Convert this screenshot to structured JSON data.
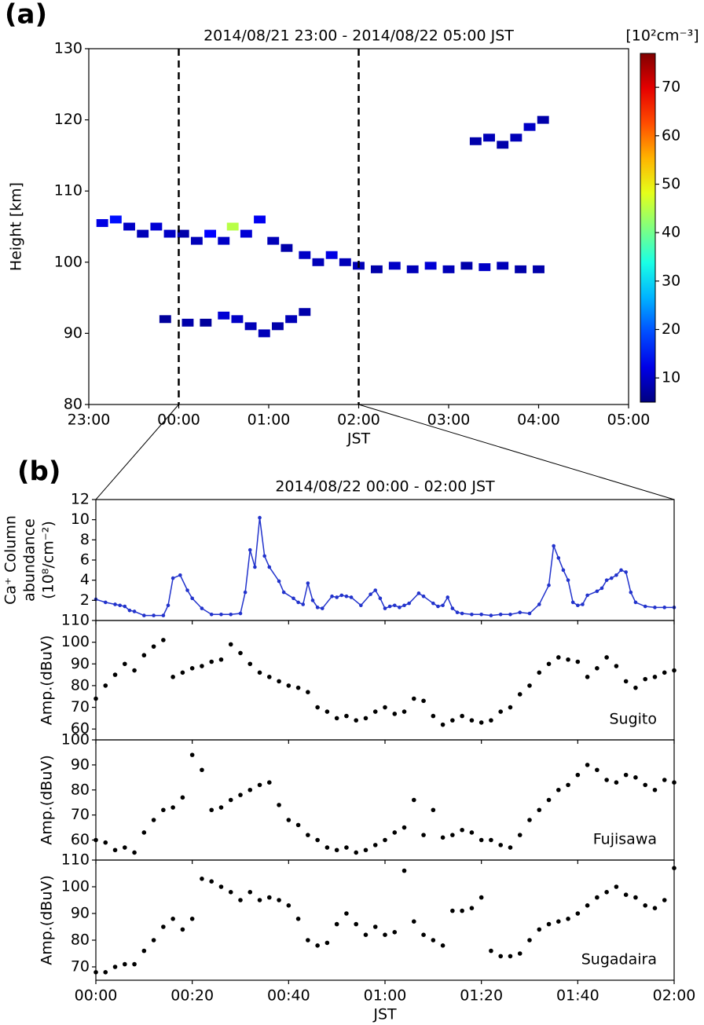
{
  "chart_data": [
    {
      "type": "heatmap",
      "panel_label": "(a)",
      "title": "2014/08/21 23:00 - 2014/08/22 05:00 JST",
      "xlabel": "JST",
      "ylabel": "Height [km]",
      "colorbar_label": "[10²cm⁻³]",
      "xlim": [
        0,
        6
      ],
      "xticks": [
        {
          "value": 0,
          "label": "23:00"
        },
        {
          "value": 1,
          "label": "00:00"
        },
        {
          "value": 2,
          "label": "01:00"
        },
        {
          "value": 3,
          "label": "02:00"
        },
        {
          "value": 4,
          "label": "03:00"
        },
        {
          "value": 5,
          "label": "04:00"
        },
        {
          "value": 6,
          "label": "05:00"
        }
      ],
      "ylim": [
        80,
        130
      ],
      "yticks": [
        80,
        90,
        100,
        110,
        120,
        130
      ],
      "clim": [
        5,
        77
      ],
      "cticks": [
        10,
        20,
        30,
        40,
        50,
        60,
        70
      ],
      "colormap": "jet",
      "vlines": [
        1,
        3
      ],
      "x": [
        0.15,
        0.3,
        0.45,
        0.6,
        0.75,
        0.9,
        1.05,
        1.2,
        1.35,
        1.5,
        1.6,
        1.75,
        1.9,
        2.05,
        2.2,
        2.4,
        2.55,
        2.7,
        2.85,
        3.0,
        3.2,
        3.4,
        3.6,
        3.8,
        4.0,
        4.2,
        4.4,
        4.6,
        4.8,
        5.0,
        0.85,
        1.1,
        1.3,
        1.5,
        1.65,
        1.8,
        1.95,
        2.1,
        2.25,
        2.4,
        4.3,
        4.45,
        4.6,
        4.75,
        4.9,
        5.05
      ],
      "y": [
        105.5,
        106,
        105,
        104,
        105,
        104,
        104,
        103,
        104,
        103,
        105,
        104,
        106,
        103,
        102,
        101,
        100,
        101,
        100,
        99.5,
        99,
        99.5,
        99,
        99.5,
        99,
        99.5,
        99.3,
        99.5,
        99,
        99,
        92,
        91.5,
        91.5,
        92.5,
        92,
        91,
        90,
        91,
        92,
        93,
        117,
        117.5,
        116.5,
        117.5,
        119,
        120
      ],
      "values": [
        12,
        15,
        10,
        9,
        11,
        10,
        8,
        9,
        14,
        10,
        45,
        11,
        13,
        9,
        8,
        10,
        9,
        12,
        9,
        9,
        8,
        10,
        9,
        11,
        9,
        8,
        10,
        9,
        8,
        8,
        7,
        8,
        7,
        11,
        10,
        9,
        9,
        8,
        9,
        8,
        8,
        9,
        8,
        9,
        10,
        8
      ]
    },
    {
      "type": "line",
      "panel_label": "(b)",
      "title": "2014/08/22 00:00 - 02:00 JST",
      "ylabel": [
        "Ca⁺ Column",
        "abundance",
        "(10⁸/cm⁻²)"
      ],
      "color": "#2233cc",
      "xlim": [
        0,
        120
      ],
      "ylim": [
        0,
        12
      ],
      "yticks": [
        2,
        4,
        6,
        8,
        10,
        12
      ],
      "x": [
        0,
        2,
        4,
        5,
        6,
        7,
        8,
        10,
        12,
        14,
        15,
        16,
        17.5,
        19,
        20,
        22,
        24,
        26,
        28,
        30,
        31,
        32,
        33,
        34,
        35,
        36,
        38,
        39,
        41,
        42,
        43,
        44,
        45,
        46,
        47,
        49,
        50,
        51,
        52,
        53,
        55,
        57,
        58,
        59,
        60,
        61,
        62,
        63,
        64,
        65,
        67,
        68,
        70,
        71,
        72,
        73,
        74,
        75,
        76,
        78,
        80,
        82,
        84,
        86,
        88,
        90,
        92,
        94,
        95,
        96,
        97,
        98,
        99,
        100,
        101,
        102,
        104,
        105,
        106,
        107,
        108,
        109,
        110,
        111,
        112,
        114,
        116,
        118,
        120
      ],
      "values": [
        2.1,
        1.8,
        1.6,
        1.5,
        1.4,
        1.0,
        0.9,
        0.5,
        0.5,
        0.5,
        1.5,
        4.2,
        4.5,
        3.0,
        2.2,
        1.2,
        0.6,
        0.6,
        0.6,
        0.7,
        2.8,
        7.0,
        5.3,
        10.2,
        6.4,
        5.3,
        3.9,
        2.8,
        2.2,
        1.8,
        1.6,
        3.7,
        2.0,
        1.3,
        1.2,
        2.4,
        2.3,
        2.5,
        2.4,
        2.3,
        1.5,
        2.6,
        3.0,
        2.2,
        1.2,
        1.4,
        1.5,
        1.3,
        1.5,
        1.7,
        2.7,
        2.4,
        1.7,
        1.4,
        1.5,
        2.3,
        1.2,
        0.8,
        0.7,
        0.6,
        0.6,
        0.5,
        0.6,
        0.6,
        0.8,
        0.7,
        1.6,
        3.5,
        7.4,
        6.2,
        5.0,
        4.0,
        1.8,
        1.5,
        1.6,
        2.5,
        2.9,
        3.2,
        4.0,
        4.2,
        4.5,
        5.0,
        4.8,
        2.8,
        1.8,
        1.4,
        1.3,
        1.3,
        1.3
      ]
    },
    {
      "type": "scatter",
      "ylabel": "Amp.(dBuV)",
      "annotation": "Sugito",
      "color": "#000000",
      "xlim": [
        0,
        120
      ],
      "ylim": [
        55,
        110
      ],
      "yticks": [
        60,
        70,
        80,
        90,
        100,
        110
      ],
      "x": [
        0,
        2,
        4,
        6,
        8,
        10,
        12,
        14,
        16,
        18,
        20,
        22,
        24,
        26,
        28,
        30,
        32,
        34,
        36,
        38,
        40,
        42,
        44,
        46,
        48,
        50,
        52,
        54,
        56,
        58,
        60,
        62,
        64,
        66,
        68,
        70,
        72,
        74,
        76,
        78,
        80,
        82,
        84,
        86,
        88,
        90,
        92,
        94,
        96,
        98,
        100,
        102,
        104,
        106,
        108,
        110,
        112,
        114,
        116,
        118,
        120
      ],
      "values": [
        74,
        80,
        85,
        90,
        87,
        94,
        98,
        101,
        84,
        86,
        88,
        89,
        91,
        92,
        99,
        95,
        90,
        86,
        84,
        82,
        80,
        79,
        77,
        70,
        68,
        65,
        66,
        64,
        65,
        68,
        70,
        67,
        68,
        74,
        73,
        66,
        62,
        64,
        66,
        64,
        63,
        64,
        68,
        70,
        76,
        80,
        86,
        90,
        93,
        92,
        91,
        84,
        88,
        93,
        89,
        82,
        79,
        83,
        84,
        86,
        87
      ]
    },
    {
      "type": "scatter",
      "ylabel": "Amp.(dBuV)",
      "annotation": "Fujisawa",
      "color": "#000000",
      "xlim": [
        0,
        120
      ],
      "ylim": [
        52,
        100
      ],
      "yticks": [
        60,
        70,
        80,
        90,
        100
      ],
      "x": [
        0,
        2,
        4,
        6,
        8,
        10,
        12,
        14,
        16,
        18,
        20,
        22,
        24,
        26,
        28,
        30,
        32,
        34,
        36,
        38,
        40,
        42,
        44,
        46,
        48,
        50,
        52,
        54,
        56,
        58,
        60,
        62,
        64,
        66,
        68,
        70,
        72,
        74,
        76,
        78,
        80,
        82,
        84,
        86,
        88,
        90,
        92,
        94,
        96,
        98,
        100,
        102,
        104,
        106,
        108,
        110,
        112,
        114,
        116,
        118,
        120
      ],
      "values": [
        60,
        59,
        56,
        57,
        55,
        63,
        68,
        72,
        73,
        77,
        94,
        88,
        72,
        73,
        76,
        78,
        80,
        82,
        83,
        74,
        68,
        66,
        62,
        60,
        57,
        56,
        57,
        55,
        56,
        58,
        60,
        63,
        65,
        76,
        62,
        72,
        61,
        62,
        64,
        63,
        60,
        60,
        58,
        57,
        62,
        68,
        72,
        76,
        80,
        82,
        86,
        90,
        88,
        84,
        83,
        86,
        85,
        82,
        80,
        84,
        83
      ]
    },
    {
      "type": "scatter",
      "ylabel": "Amp.(dBuV)",
      "annotation": "Sugadaira",
      "xlabel": "JST",
      "color": "#000000",
      "xlim": [
        0,
        120
      ],
      "xticks": [
        {
          "value": 0,
          "label": "00:00"
        },
        {
          "value": 20,
          "label": "00:20"
        },
        {
          "value": 40,
          "label": "00:40"
        },
        {
          "value": 60,
          "label": "01:00"
        },
        {
          "value": 80,
          "label": "01:20"
        },
        {
          "value": 100,
          "label": "01:40"
        },
        {
          "value": 120,
          "label": "02:00"
        }
      ],
      "ylim": [
        65,
        110
      ],
      "yticks": [
        70,
        80,
        90,
        100,
        110
      ],
      "x": [
        0,
        2,
        4,
        6,
        8,
        10,
        12,
        14,
        16,
        18,
        20,
        22,
        24,
        26,
        28,
        30,
        32,
        34,
        36,
        38,
        40,
        42,
        44,
        46,
        48,
        50,
        52,
        54,
        56,
        58,
        60,
        62,
        64,
        66,
        68,
        70,
        72,
        74,
        76,
        78,
        80,
        82,
        84,
        86,
        88,
        90,
        92,
        94,
        96,
        98,
        100,
        102,
        104,
        106,
        108,
        110,
        112,
        114,
        116,
        118,
        120
      ],
      "values": [
        68,
        68,
        70,
        71,
        71,
        76,
        80,
        85,
        88,
        84,
        88,
        103,
        102,
        100,
        98,
        95,
        98,
        95,
        96,
        95,
        93,
        88,
        80,
        78,
        79,
        86,
        90,
        86,
        82,
        85,
        82,
        83,
        106,
        87,
        82,
        80,
        78,
        91,
        91,
        92,
        96,
        76,
        74,
        74,
        75,
        80,
        84,
        86,
        87,
        88,
        90,
        93,
        96,
        98,
        100,
        97,
        96,
        93,
        92,
        95,
        107
      ]
    }
  ]
}
